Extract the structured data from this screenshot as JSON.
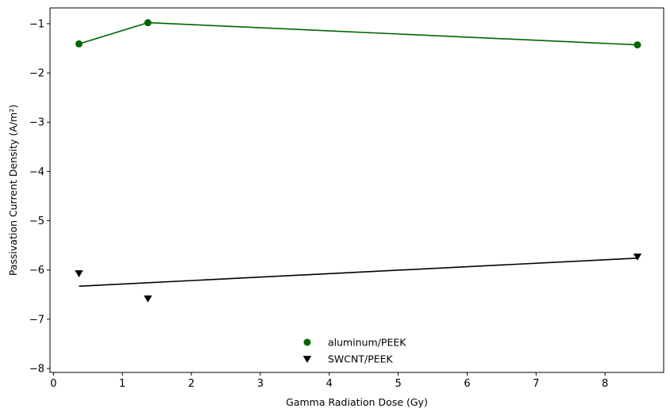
{
  "chart_data": {
    "type": "scatter",
    "title": "",
    "xlabel": "Gamma Radiation Dose (Gy)",
    "ylabel": "Passivation Current Density (A/m²)",
    "xlim": [
      -0.05,
      8.85
    ],
    "ylim": [
      -8.08,
      -0.68
    ],
    "xticks": [
      0,
      1,
      2,
      3,
      4,
      5,
      6,
      7,
      8
    ],
    "yticks": [
      -1,
      -2,
      -3,
      -4,
      -5,
      -6,
      -7,
      -8
    ],
    "xtick_labels": [
      "0",
      "1",
      "2",
      "3",
      "4",
      "5",
      "6",
      "7",
      "8"
    ],
    "ytick_labels": [
      "−1",
      "−2",
      "−3",
      "−4",
      "−5",
      "−6",
      "−7",
      "−8"
    ],
    "grid": false,
    "legend_position": "bottom-center",
    "series": [
      {
        "name": "aluminum/PEEK",
        "marker": "circle",
        "color": "#006400",
        "x": [
          0.37,
          1.37,
          8.47
        ],
        "y": [
          -1.41,
          -0.98,
          -1.43
        ],
        "line": {
          "x": [
            0.37,
            1.37,
            8.47
          ],
          "y": [
            -1.41,
            -0.98,
            -1.43
          ]
        }
      },
      {
        "name": "SWCNT/PEEK",
        "marker": "triangle-down",
        "color": "#000000",
        "x": [
          0.37,
          1.37,
          8.47
        ],
        "y": [
          -6.07,
          -6.58,
          -5.73
        ],
        "line": {
          "x": [
            0.37,
            8.47
          ],
          "y": [
            -6.33,
            -5.76
          ]
        }
      }
    ]
  }
}
